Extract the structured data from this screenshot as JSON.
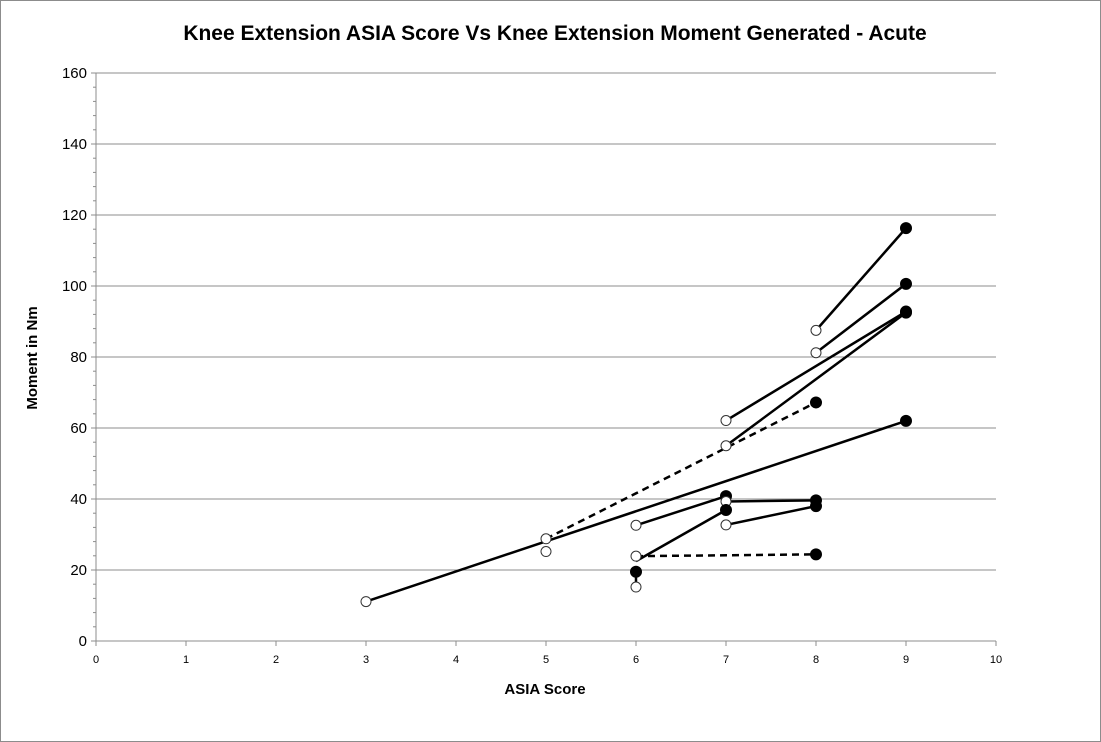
{
  "chart_data": {
    "type": "scatter",
    "title": "Knee Extension ASIA Score Vs Knee Extension Moment Generated - Acute",
    "xlabel": "ASIA Score",
    "ylabel": "Moment  in Nm",
    "xlim": [
      0,
      10
    ],
    "ylim": [
      0,
      160
    ],
    "xticks": [
      0,
      1,
      2,
      3,
      4,
      5,
      6,
      7,
      8,
      9,
      10
    ],
    "yticks": [
      0,
      20,
      40,
      60,
      80,
      100,
      120,
      140,
      160
    ],
    "grid": "horizontal",
    "legend": "none",
    "series": [
      {
        "style": "solid",
        "points": [
          {
            "x": 8,
            "y": 87.5,
            "marker": "open"
          },
          {
            "x": 9,
            "y": 116.3,
            "marker": "filled"
          }
        ]
      },
      {
        "style": "solid",
        "points": [
          {
            "x": 8,
            "y": 81.2,
            "marker": "open"
          },
          {
            "x": 9,
            "y": 100.6,
            "marker": "filled"
          }
        ]
      },
      {
        "style": "solid",
        "points": [
          {
            "x": 7,
            "y": 62.1,
            "marker": "open"
          },
          {
            "x": 9,
            "y": 92.8,
            "marker": "filled"
          }
        ]
      },
      {
        "style": "solid",
        "points": [
          {
            "x": 7,
            "y": 55.0,
            "marker": "open"
          },
          {
            "x": 9,
            "y": 92.5,
            "marker": "filled"
          }
        ]
      },
      {
        "style": "dashed",
        "points": [
          {
            "x": 5,
            "y": 28.8,
            "marker": "open"
          },
          {
            "x": 8,
            "y": 67.2,
            "marker": "filled"
          }
        ]
      },
      {
        "style": "solid",
        "points": [
          {
            "x": 3,
            "y": 11.1,
            "marker": "open"
          },
          {
            "x": 9,
            "y": 62.0,
            "marker": "filled"
          }
        ]
      },
      {
        "style": "solid",
        "points": [
          {
            "x": 6,
            "y": 32.6,
            "marker": "open"
          },
          {
            "x": 7,
            "y": 40.8,
            "marker": "filled"
          }
        ]
      },
      {
        "style": "solid",
        "points": [
          {
            "x": 7,
            "y": 39.3,
            "marker": "open"
          },
          {
            "x": 8,
            "y": 39.6,
            "marker": "filled"
          }
        ]
      },
      {
        "style": "solid",
        "points": [
          {
            "x": 7,
            "y": 32.7,
            "marker": "open"
          },
          {
            "x": 8,
            "y": 38.0,
            "marker": "filled"
          }
        ]
      },
      {
        "style": "solid",
        "points": [
          {
            "x": 6,
            "y": 22.5,
            "marker": "none"
          },
          {
            "x": 7,
            "y": 36.9,
            "marker": "filled"
          }
        ]
      },
      {
        "style": "dashed",
        "points": [
          {
            "x": 6,
            "y": 23.9,
            "marker": "open"
          },
          {
            "x": 8,
            "y": 24.4,
            "marker": "filled"
          }
        ]
      },
      {
        "style": "solid",
        "points": [
          {
            "x": 6,
            "y": 15.2,
            "marker": "open"
          },
          {
            "x": 6,
            "y": 19.5,
            "marker": "filled"
          }
        ]
      },
      {
        "style": "solid",
        "points": [
          {
            "x": 5,
            "y": 25.2,
            "marker": "open"
          }
        ]
      }
    ]
  }
}
